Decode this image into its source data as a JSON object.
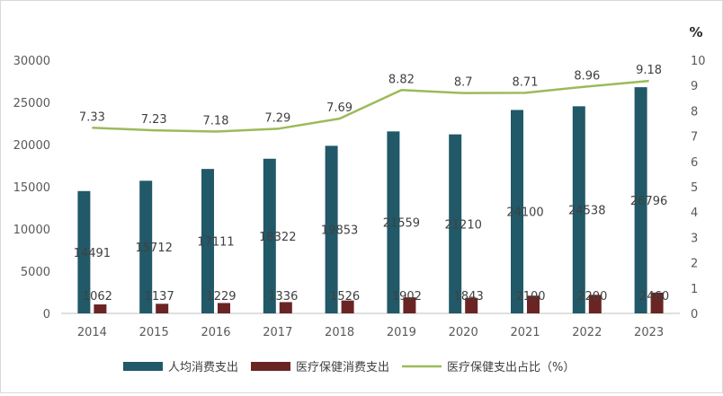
{
  "chart_data": {
    "type": "bar",
    "categories": [
      "2014",
      "2015",
      "2016",
      "2017",
      "2018",
      "2019",
      "2020",
      "2021",
      "2022",
      "2023"
    ],
    "series": [
      {
        "name": "人均消费支出",
        "type": "bar",
        "axis": "left",
        "color": "#215968",
        "values": [
          14491,
          15712,
          17111,
          18322,
          19853,
          21559,
          21210,
          24100,
          24538,
          26796
        ],
        "labels": [
          "14491",
          "15712",
          "17111",
          "18322",
          "19853",
          "21559",
          "21210",
          "24100",
          "24538",
          "26796"
        ]
      },
      {
        "name": "医疗保健消费支出",
        "type": "bar",
        "axis": "left",
        "color": "#6b2424",
        "values": [
          1062,
          1137,
          1229,
          1336,
          1526,
          1902,
          1843,
          2100,
          2200,
          2460
        ],
        "labels": [
          "1062",
          "1137",
          "1229",
          "1336",
          "1526",
          "1902",
          "1843",
          "2100",
          "2200",
          "2460"
        ]
      },
      {
        "name": "医疗保健支出占比（%）",
        "type": "line",
        "axis": "right",
        "color": "#9bbb59",
        "values": [
          7.33,
          7.23,
          7.18,
          7.29,
          7.69,
          8.82,
          8.7,
          8.71,
          8.96,
          9.18
        ],
        "labels": [
          "7.33",
          "7.23",
          "7.18",
          "7.29",
          "7.69",
          "8.82",
          "8.7",
          "8.71",
          "8.96",
          "9.18"
        ]
      }
    ],
    "y_left": {
      "ylim": [
        0,
        30000
      ],
      "ticks": [
        "0",
        "5000",
        "10000",
        "15000",
        "20000",
        "25000",
        "30000"
      ]
    },
    "y_right": {
      "ylim": [
        0,
        10
      ],
      "unit": "%",
      "ticks": [
        "0",
        "1",
        "2",
        "3",
        "4",
        "5",
        "6",
        "7",
        "8",
        "9",
        "10"
      ]
    },
    "legend_position": "bottom",
    "grid": false
  }
}
